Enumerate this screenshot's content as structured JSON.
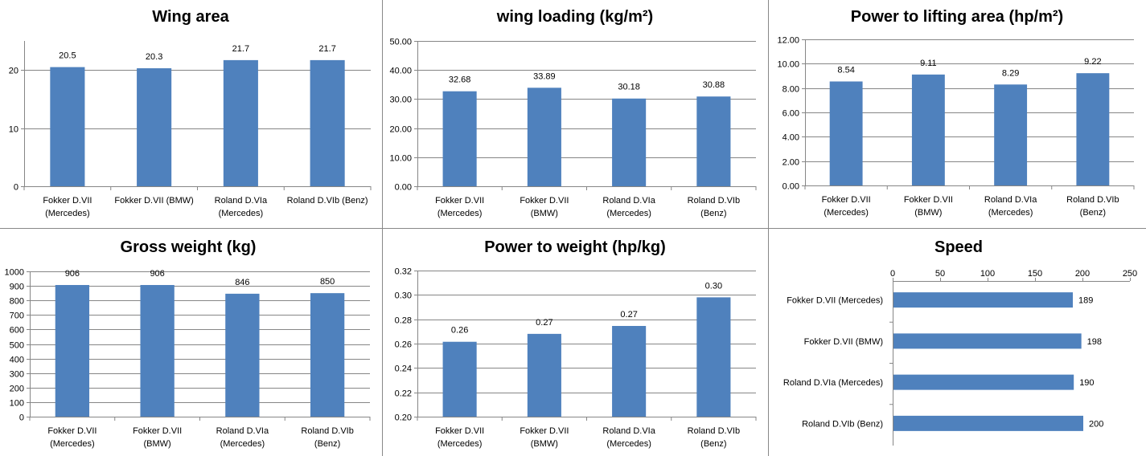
{
  "bar_color": "#4F81BD",
  "chart_data": [
    {
      "type": "bar",
      "title": "Wing area",
      "categories": [
        "Fokker D.VII (Mercedes)",
        "Fokker D.VII (BMW)",
        "Roland D.VIa (Mercedes)",
        "Roland D.VIb (Benz)"
      ],
      "values": [
        20.5,
        20.3,
        21.7,
        21.7
      ],
      "data_labels": [
        "20.5",
        "20.3",
        "21.7",
        "21.7"
      ],
      "yticks": [
        "0",
        "10",
        "20"
      ],
      "ytick_values": [
        0,
        10,
        20
      ],
      "ylim": [
        0,
        25
      ],
      "xlabel": "",
      "ylabel": "",
      "grid": true,
      "legend": "none"
    },
    {
      "type": "bar",
      "title": "wing loading (kg/m²)",
      "categories": [
        "Fokker D.VII (Mercedes)",
        "Fokker D.VII (BMW)",
        "Roland D.VIa (Mercedes)",
        "Roland D.VIb (Benz)"
      ],
      "values": [
        32.68,
        33.89,
        30.18,
        30.88
      ],
      "data_labels": [
        "32.68",
        "33.89",
        "30.18",
        "30.88"
      ],
      "yticks": [
        "0.00",
        "10.00",
        "20.00",
        "30.00",
        "40.00",
        "50.00"
      ],
      "ytick_values": [
        0,
        10,
        20,
        30,
        40,
        50
      ],
      "ylim": [
        0,
        50
      ],
      "xlabel": "",
      "ylabel": "",
      "grid": true,
      "legend": "none"
    },
    {
      "type": "bar",
      "title": "Power to lifting area (hp/m²)",
      "categories": [
        "Fokker D.VII (Mercedes)",
        "Fokker D.VII (BMW)",
        "Roland D.VIa (Mercedes)",
        "Roland D.VIb (Benz)"
      ],
      "values": [
        8.54,
        9.11,
        8.29,
        9.22
      ],
      "data_labels": [
        "8.54",
        "9.11",
        "8.29",
        "9.22"
      ],
      "yticks": [
        "0.00",
        "2.00",
        "4.00",
        "6.00",
        "8.00",
        "10.00",
        "12.00"
      ],
      "ytick_values": [
        0,
        2,
        4,
        6,
        8,
        10,
        12
      ],
      "ylim": [
        0,
        12
      ],
      "xlabel": "",
      "ylabel": "",
      "grid": true,
      "legend": "none"
    },
    {
      "type": "bar",
      "title": "Gross weight (kg)",
      "categories": [
        "Fokker D.VII (Mercedes)",
        "Fokker D.VII (BMW)",
        "Roland D.VIa (Mercedes)",
        "Roland D.VIb (Benz)"
      ],
      "values": [
        906,
        906,
        846,
        850
      ],
      "data_labels": [
        "906",
        "906",
        "846",
        "850"
      ],
      "yticks": [
        "0",
        "100",
        "200",
        "300",
        "400",
        "500",
        "600",
        "700",
        "800",
        "900",
        "1000"
      ],
      "ytick_values": [
        0,
        100,
        200,
        300,
        400,
        500,
        600,
        700,
        800,
        900,
        1000
      ],
      "ylim": [
        0,
        1000
      ],
      "xlabel": "",
      "ylabel": "",
      "grid": true,
      "legend": "none"
    },
    {
      "type": "bar",
      "title": "Power to weight (hp/kg)",
      "categories": [
        "Fokker D.VII (Mercedes)",
        "Fokker D.VII (BMW)",
        "Roland D.VIa (Mercedes)",
        "Roland D.VIb (Benz)"
      ],
      "values": [
        0.2615,
        0.268,
        0.2745,
        0.298
      ],
      "data_labels": [
        "0.26",
        "0.27",
        "0.27",
        "0.30"
      ],
      "yticks": [
        "0.20",
        "0.22",
        "0.24",
        "0.26",
        "0.28",
        "0.30",
        "0.32"
      ],
      "ytick_values": [
        0.2,
        0.22,
        0.24,
        0.26,
        0.28,
        0.3,
        0.32
      ],
      "ylim": [
        0.2,
        0.32
      ],
      "xlabel": "",
      "ylabel": "",
      "grid": true,
      "legend": "none"
    },
    {
      "type": "bar",
      "orientation": "horizontal",
      "title": "Speed",
      "categories": [
        "Fokker D.VII (Mercedes)",
        "Fokker D.VII (BMW)",
        "Roland D.VIa (Mercedes)",
        "Roland D.VIb (Benz)"
      ],
      "values": [
        189,
        198,
        190,
        200
      ],
      "data_labels": [
        "189",
        "198",
        "190",
        "200"
      ],
      "xticks": [
        "0",
        "50",
        "100",
        "150",
        "200",
        "250"
      ],
      "xtick_values": [
        0,
        50,
        100,
        150,
        200,
        250
      ],
      "xlim": [
        0,
        250
      ],
      "xlabel": "",
      "ylabel": "",
      "grid": false,
      "legend": "none"
    }
  ]
}
